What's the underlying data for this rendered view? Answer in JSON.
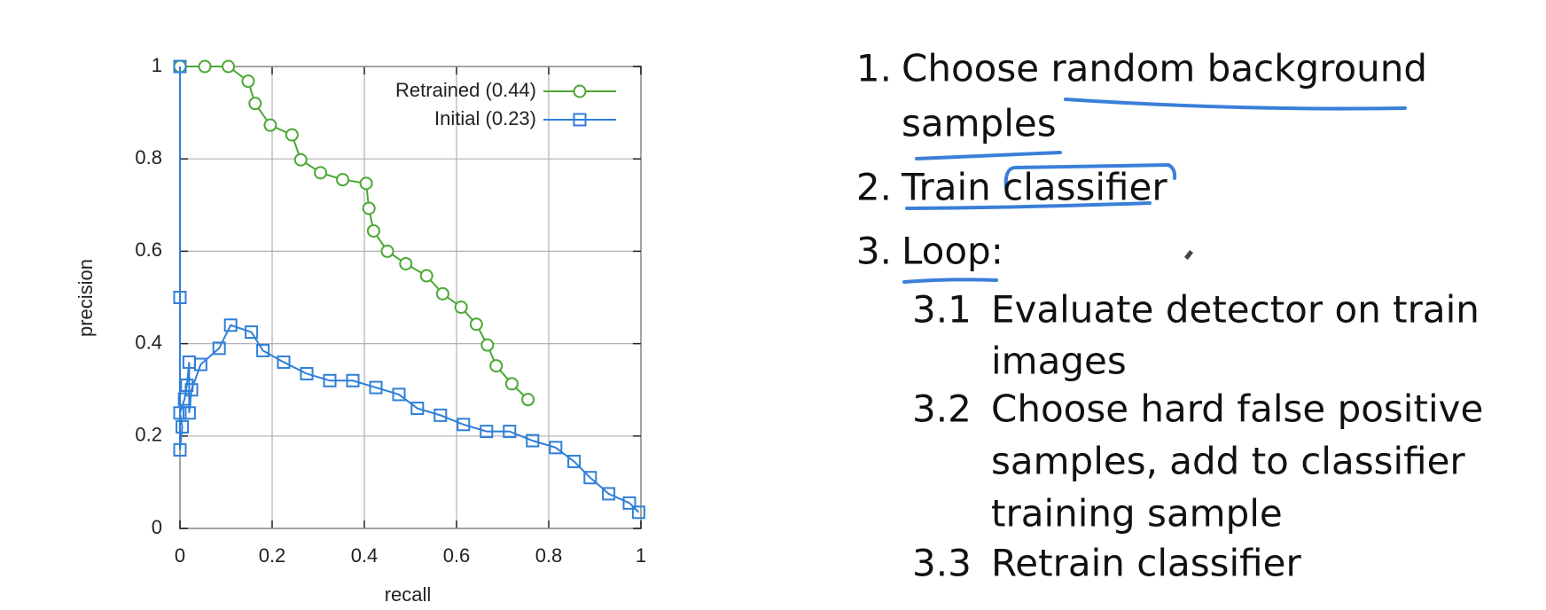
{
  "chart_data": {
    "type": "line",
    "xlabel": "recall",
    "ylabel": "precision",
    "xlim": [
      0,
      1
    ],
    "ylim": [
      0,
      1
    ],
    "xticks": [
      0,
      0.2,
      0.4,
      0.6,
      0.8,
      1
    ],
    "yticks": [
      0,
      0.2,
      0.4,
      0.6,
      0.8,
      1
    ],
    "grid": true,
    "legend": "upper right",
    "series": [
      {
        "name": "Retrained (0.44)",
        "color": "#4aa832",
        "marker": "circle",
        "x": [
          0,
          0.054,
          0.105,
          0.148,
          0.163,
          0.196,
          0.243,
          0.262,
          0.305,
          0.353,
          0.404,
          0.41,
          0.42,
          0.45,
          0.49,
          0.535,
          0.57,
          0.61,
          0.643,
          0.667,
          0.686,
          0.72,
          0.755
        ],
        "values": [
          1,
          1,
          1,
          0.968,
          0.92,
          0.873,
          0.852,
          0.798,
          0.77,
          0.755,
          0.747,
          0.693,
          0.644,
          0.6,
          0.573,
          0.547,
          0.508,
          0.479,
          0.442,
          0.397,
          0.352,
          0.313,
          0.279
        ]
      },
      {
        "name": "Initial (0.23)",
        "color": "#2f7fd8",
        "marker": "square",
        "x": [
          0,
          0,
          0,
          0.005,
          0,
          0.01,
          0.015,
          0.02,
          0.02,
          0.025,
          0.045,
          0.085,
          0.11,
          0.155,
          0.18,
          0.225,
          0.275,
          0.325,
          0.375,
          0.425,
          0.475,
          0.515,
          0.565,
          0.615,
          0.665,
          0.715,
          0.765,
          0.815,
          0.855,
          0.89,
          0.93,
          0.975,
          0.995
        ],
        "values": [
          1,
          0.5,
          0.17,
          0.22,
          0.25,
          0.28,
          0.31,
          0.36,
          0.25,
          0.3,
          0.355,
          0.39,
          0.44,
          0.425,
          0.385,
          0.36,
          0.335,
          0.32,
          0.32,
          0.305,
          0.29,
          0.26,
          0.245,
          0.225,
          0.21,
          0.21,
          0.19,
          0.175,
          0.145,
          0.11,
          0.075,
          0.055,
          0.035
        ]
      }
    ]
  },
  "list": [
    {
      "number": "1.",
      "lines": [
        "Choose random background",
        "samples"
      ]
    },
    {
      "number": "2.",
      "lines": [
        "Train classifier"
      ]
    },
    {
      "number": "3.",
      "lines": [
        "Loop:"
      ]
    },
    {
      "number": "3.1",
      "lines": [
        "Evaluate detector on train",
        "images"
      ]
    },
    {
      "number": "3.2",
      "lines": [
        "Choose hard false positive",
        "samples, add to classifier",
        "training sample"
      ]
    },
    {
      "number": "3.3",
      "lines": [
        "Retrain classifier"
      ]
    }
  ]
}
